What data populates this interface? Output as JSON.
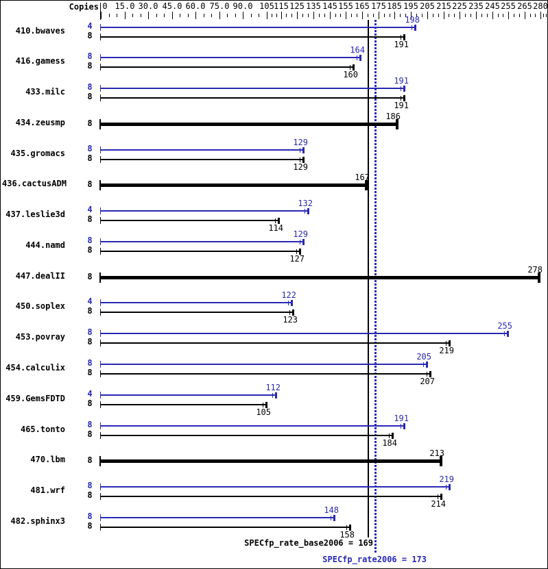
{
  "header": {
    "copies_label": "Copies"
  },
  "axis": {
    "ticks": [
      {
        "value": 0,
        "label": "0"
      },
      {
        "value": 15,
        "label": "15.0"
      },
      {
        "value": 30,
        "label": "30.0"
      },
      {
        "value": 45,
        "label": "45.0"
      },
      {
        "value": 60,
        "label": "60.0"
      },
      {
        "value": 75,
        "label": "75.0"
      },
      {
        "value": 90,
        "label": "90.0"
      },
      {
        "value": 105,
        "label": "105"
      },
      {
        "value": 115,
        "label": "115"
      },
      {
        "value": 125,
        "label": "125"
      },
      {
        "value": 135,
        "label": "135"
      },
      {
        "value": 145,
        "label": "145"
      },
      {
        "value": 155,
        "label": "155"
      },
      {
        "value": 165,
        "label": "165"
      },
      {
        "value": 175,
        "label": "175"
      },
      {
        "value": 185,
        "label": "185"
      },
      {
        "value": 195,
        "label": "195"
      },
      {
        "value": 205,
        "label": "205"
      },
      {
        "value": 215,
        "label": "215"
      },
      {
        "value": 225,
        "label": "225"
      },
      {
        "value": 235,
        "label": "235"
      },
      {
        "value": 245,
        "label": "245"
      },
      {
        "value": 255,
        "label": "255"
      },
      {
        "value": 265,
        "label": "265"
      },
      {
        "value": 280,
        "label": "280"
      }
    ]
  },
  "colors": {
    "peak": "#2828b4",
    "base": "#000000"
  },
  "benchmarks": [
    {
      "name": "410.bwaves",
      "bars": [
        {
          "copies": "4",
          "value": 198,
          "series": "peak"
        },
        {
          "copies": "8",
          "value": 191,
          "series": "base"
        }
      ]
    },
    {
      "name": "416.gamess",
      "bars": [
        {
          "copies": "8",
          "value": 164,
          "series": "peak"
        },
        {
          "copies": "8",
          "value": 160,
          "series": "base"
        }
      ]
    },
    {
      "name": "433.milc",
      "bars": [
        {
          "copies": "8",
          "value": 191,
          "series": "peak"
        },
        {
          "copies": "8",
          "value": 191,
          "series": "base"
        }
      ]
    },
    {
      "name": "434.zeusmp",
      "bars": [
        {
          "copies": "8",
          "value": 186,
          "series": "both"
        }
      ]
    },
    {
      "name": "435.gromacs",
      "bars": [
        {
          "copies": "8",
          "value": 129,
          "series": "peak"
        },
        {
          "copies": "8",
          "value": 129,
          "series": "base"
        }
      ]
    },
    {
      "name": "436.cactusADM",
      "bars": [
        {
          "copies": "8",
          "value": 167,
          "series": "both"
        }
      ]
    },
    {
      "name": "437.leslie3d",
      "bars": [
        {
          "copies": "4",
          "value": 132,
          "series": "peak"
        },
        {
          "copies": "8",
          "value": 114,
          "series": "base"
        }
      ]
    },
    {
      "name": "444.namd",
      "bars": [
        {
          "copies": "8",
          "value": 129,
          "series": "peak"
        },
        {
          "copies": "8",
          "value": 127,
          "series": "base"
        }
      ]
    },
    {
      "name": "447.dealII",
      "bars": [
        {
          "copies": "8",
          "value": 278,
          "series": "both"
        }
      ]
    },
    {
      "name": "450.soplex",
      "bars": [
        {
          "copies": "4",
          "value": 122,
          "series": "peak"
        },
        {
          "copies": "8",
          "value": 123,
          "series": "base"
        }
      ]
    },
    {
      "name": "453.povray",
      "bars": [
        {
          "copies": "8",
          "value": 255,
          "series": "peak"
        },
        {
          "copies": "8",
          "value": 219,
          "series": "base"
        }
      ]
    },
    {
      "name": "454.calculix",
      "bars": [
        {
          "copies": "8",
          "value": 205,
          "series": "peak"
        },
        {
          "copies": "8",
          "value": 207,
          "series": "base"
        }
      ]
    },
    {
      "name": "459.GemsFDTD",
      "bars": [
        {
          "copies": "4",
          "value": 112,
          "series": "peak"
        },
        {
          "copies": "8",
          "value": 105,
          "series": "base"
        }
      ]
    },
    {
      "name": "465.tonto",
      "bars": [
        {
          "copies": "8",
          "value": 191,
          "series": "peak"
        },
        {
          "copies": "8",
          "value": 184,
          "series": "base"
        }
      ]
    },
    {
      "name": "470.lbm",
      "bars": [
        {
          "copies": "8",
          "value": 213,
          "series": "both"
        }
      ]
    },
    {
      "name": "481.wrf",
      "bars": [
        {
          "copies": "8",
          "value": 219,
          "series": "peak"
        },
        {
          "copies": "8",
          "value": 214,
          "series": "base"
        }
      ]
    },
    {
      "name": "482.sphinx3",
      "bars": [
        {
          "copies": "8",
          "value": 148,
          "series": "peak"
        },
        {
          "copies": "8",
          "value": 158,
          "series": "base"
        }
      ]
    }
  ],
  "reference_lines": [
    {
      "series": "base",
      "value": 169,
      "style": "solid"
    },
    {
      "series": "peak",
      "value": 173,
      "style": "dotted"
    }
  ],
  "footer": {
    "base_text": "SPECfp_rate_base2006 = 169",
    "peak_text": "SPECfp_rate2006 = 173"
  },
  "chart_data": {
    "type": "bar",
    "orientation": "horizontal",
    "title": "",
    "xlabel": "",
    "ylabel": "Copies",
    "xlim": [
      0,
      280
    ],
    "axis_tick_labels": [
      "0",
      "15.0",
      "30.0",
      "45.0",
      "60.0",
      "75.0",
      "90.0",
      "105",
      "115",
      "125",
      "135",
      "145",
      "155",
      "165",
      "175",
      "185",
      "195",
      "205",
      "215",
      "225",
      "235",
      "245",
      "255",
      "265",
      "280"
    ],
    "categories": [
      "410.bwaves",
      "416.gamess",
      "433.milc",
      "434.zeusmp",
      "435.gromacs",
      "436.cactusADM",
      "437.leslie3d",
      "444.namd",
      "447.dealII",
      "450.soplex",
      "453.povray",
      "454.calculix",
      "459.GemsFDTD",
      "465.tonto",
      "470.lbm",
      "481.wrf",
      "482.sphinx3"
    ],
    "series": [
      {
        "name": "SPECfp_rate2006 (peak)",
        "color": "#2828b4",
        "copies": [
          4,
          8,
          8,
          8,
          8,
          8,
          4,
          8,
          8,
          4,
          8,
          8,
          4,
          8,
          8,
          8,
          8
        ],
        "values": [
          198,
          164,
          191,
          186,
          129,
          167,
          132,
          129,
          278,
          122,
          255,
          205,
          112,
          191,
          213,
          219,
          148
        ]
      },
      {
        "name": "SPECfp_rate_base2006 (base)",
        "color": "#000000",
        "copies": [
          8,
          8,
          8,
          8,
          8,
          8,
          8,
          8,
          8,
          8,
          8,
          8,
          8,
          8,
          8,
          8,
          8
        ],
        "values": [
          191,
          160,
          191,
          186,
          129,
          167,
          114,
          127,
          278,
          123,
          219,
          207,
          105,
          184,
          213,
          214,
          158
        ]
      }
    ],
    "single_bar_rows": [
      "434.zeusmp",
      "436.cactusADM",
      "447.dealII",
      "470.lbm"
    ],
    "summary": {
      "SPECfp_rate_base2006": 169,
      "SPECfp_rate2006": 173
    },
    "legend_position": "none",
    "grid": false
  }
}
